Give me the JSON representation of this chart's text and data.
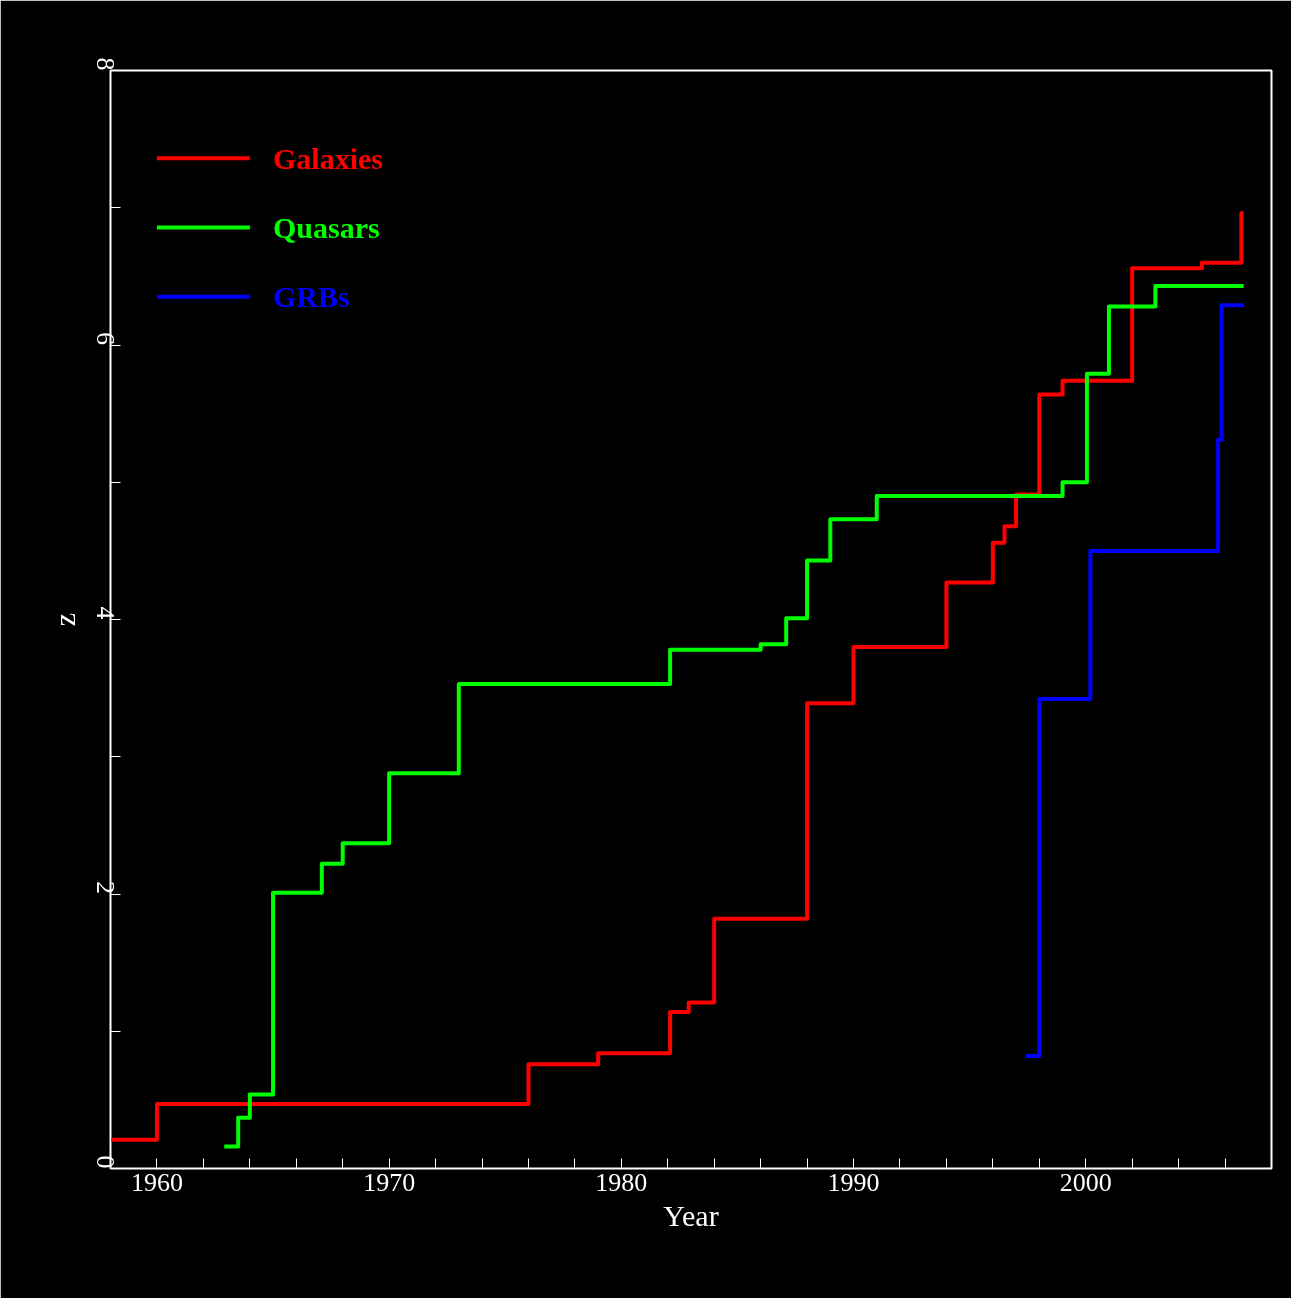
{
  "chart_data": {
    "type": "step",
    "xlabel": "Year",
    "ylabel": "z",
    "xlim": [
      1958,
      2008
    ],
    "ylim": [
      0,
      8
    ],
    "xticks": [
      1960,
      {
        "value": 1962,
        "label": null
      },
      {
        "value": 1964,
        "label": null
      },
      {
        "value": 1966,
        "label": null
      },
      {
        "value": 1968,
        "label": null
      },
      1970,
      {
        "value": 1972,
        "label": null
      },
      {
        "value": 1974,
        "label": null
      },
      {
        "value": 1976,
        "label": null
      },
      {
        "value": 1978,
        "label": null
      },
      1980,
      {
        "value": 1982,
        "label": null
      },
      {
        "value": 1984,
        "label": null
      },
      {
        "value": 1986,
        "label": null
      },
      {
        "value": 1988,
        "label": null
      },
      1990,
      {
        "value": 1992,
        "label": null
      },
      {
        "value": 1994,
        "label": null
      },
      {
        "value": 1996,
        "label": null
      },
      {
        "value": 1998,
        "label": null
      },
      2000,
      {
        "value": 2002,
        "label": null
      },
      {
        "value": 2004,
        "label": null
      },
      {
        "value": 2006,
        "label": null
      }
    ],
    "yticks": [
      0,
      {
        "value": 1,
        "label": null
      },
      2,
      {
        "value": 3,
        "label": null
      },
      4,
      {
        "value": 5,
        "label": null
      },
      6,
      {
        "value": 7,
        "label": null
      },
      8
    ],
    "grid": false,
    "legend": "top left",
    "series": [
      {
        "name": "Galaxies",
        "color": "#ff0000",
        "x": [
          1958,
          1960,
          1976,
          1979,
          1982.1,
          1982.9,
          1984,
          1988,
          1990,
          1994,
          1996,
          1996.5,
          1997,
          1998,
          1999,
          2002,
          2005,
          2006.7,
          2006.8
        ],
        "values": [
          0.21,
          0.47,
          0.76,
          0.84,
          1.14,
          1.21,
          1.82,
          3.39,
          3.8,
          4.27,
          4.56,
          4.68,
          4.91,
          5.64,
          5.74,
          6.56,
          6.6,
          6.96,
          6.96
        ]
      },
      {
        "name": "Quasars",
        "color": "#00ff00",
        "x": [
          1962.9,
          1963.5,
          1964,
          1965,
          1967.1,
          1968,
          1970,
          1973,
          1982.1,
          1986,
          1987.1,
          1988,
          1989,
          1991,
          1999,
          2000.05,
          2001,
          2003,
          2006.8
        ],
        "values": [
          0.16,
          0.37,
          0.54,
          2.01,
          2.22,
          2.37,
          2.88,
          3.53,
          3.78,
          3.82,
          4.01,
          4.43,
          4.73,
          4.9,
          5.0,
          5.79,
          6.28,
          6.43,
          6.43
        ]
      },
      {
        "name": "GRBs",
        "color": "#0000ff",
        "x": [
          1997.4,
          1998,
          2000.2,
          2005.7,
          2005.85,
          2006.8
        ],
        "values": [
          0.82,
          3.42,
          4.5,
          5.31,
          6.29,
          6.29
        ]
      }
    ]
  }
}
